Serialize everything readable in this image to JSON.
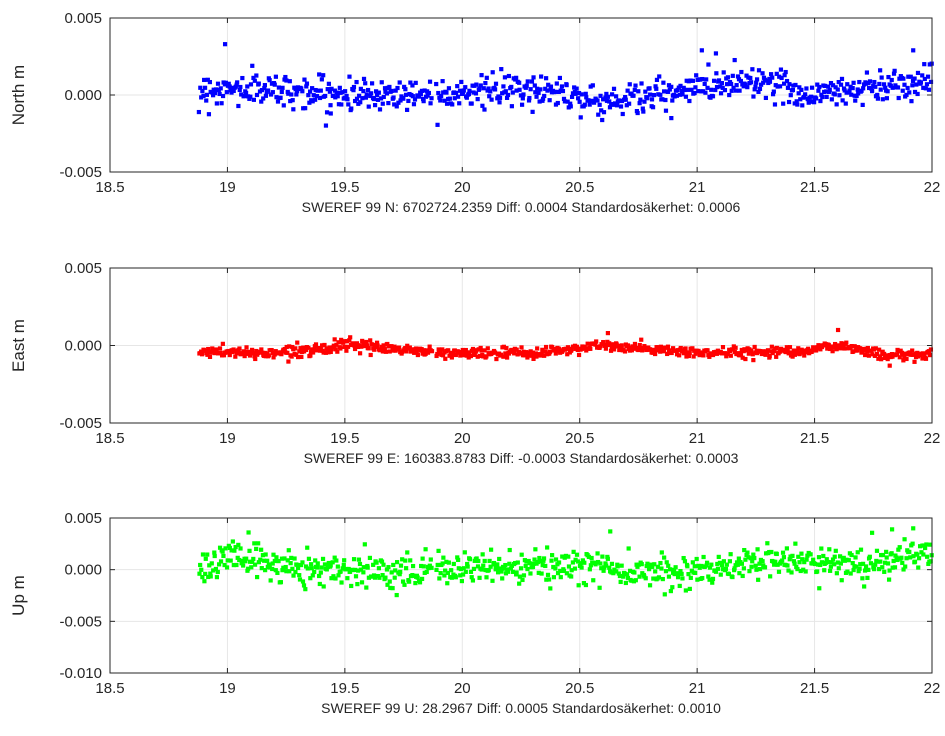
{
  "chart_data": [
    {
      "type": "scatter",
      "ylabel": "North m",
      "xlabel": "SWEREF 99 N: 6702724.2359 Diff: 0.0004 Standardosäkerhet: 0.0006",
      "xlim": [
        18.5,
        22
      ],
      "ylim": [
        -0.005,
        0.005
      ],
      "xticks": [
        18.5,
        19,
        19.5,
        20,
        20.5,
        21,
        21.5,
        22
      ],
      "xtick_labels": [
        "18.5",
        "19",
        "19.5",
        "20",
        "20.5",
        "21",
        "21.5",
        "22"
      ],
      "yticks": [
        -0.005,
        0.0,
        0.005
      ],
      "ytick_labels": [
        "-0.005",
        "0.000",
        "0.005"
      ],
      "grid": true,
      "color": "#0000ff",
      "series": [
        {
          "segments": [
            {
              "x_start": 18.88,
              "x_end": 19.87,
              "base": [
                [
                  0.0,
                  0.0003
                ],
                [
                  0.3,
                  0.0004
                ],
                [
                  0.6,
                  0.0
                ],
                [
                  1.0,
                  0.0001
                ]
              ],
              "noise": 0.0006
            },
            {
              "x_start": 19.89,
              "x_end": 22.0,
              "base": [
                [
                  0.0,
                  0.0002
                ],
                [
                  0.25,
                  0.0003
                ],
                [
                  0.32,
                  -0.0005
                ],
                [
                  0.5,
                  0.0002
                ],
                [
                  0.55,
                  0.0007
                ],
                [
                  0.65,
                  0.001
                ],
                [
                  0.75,
                  0.0
                ],
                [
                  0.95,
                  0.0008
                ],
                [
                  1.0,
                  0.001
                ]
              ],
              "noise": 0.0006
            }
          ],
          "outliers": [
            {
              "x": 18.99,
              "y": 0.0033
            },
            {
              "x": 21.02,
              "y": 0.0029
            },
            {
              "x": 21.08,
              "y": 0.0027
            },
            {
              "x": 21.92,
              "y": 0.0029
            },
            {
              "x": 20.89,
              "y": -0.0015
            },
            {
              "x": 19.44,
              "y": -0.0012
            }
          ]
        }
      ]
    },
    {
      "type": "scatter",
      "ylabel": "East m",
      "xlabel": "SWEREF 99 E:  160383.8783 Diff: -0.0003 Standardosäkerhet: 0.0003",
      "xlim": [
        18.5,
        22
      ],
      "ylim": [
        -0.005,
        0.005
      ],
      "xticks": [
        18.5,
        19,
        19.5,
        20,
        20.5,
        21,
        21.5,
        22
      ],
      "xtick_labels": [
        "18.5",
        "19",
        "19.5",
        "20",
        "20.5",
        "21",
        "21.5",
        "22"
      ],
      "yticks": [
        -0.005,
        0.0,
        0.005
      ],
      "ytick_labels": [
        "-0.005",
        "0.000",
        "0.005"
      ],
      "grid": true,
      "color": "#ff0000",
      "series": [
        {
          "segments": [
            {
              "x_start": 18.88,
              "x_end": 19.87,
              "base": [
                [
                  0.0,
                  -0.0004
                ],
                [
                  0.3,
                  -0.0005
                ],
                [
                  0.65,
                  0.0
                ],
                [
                  1.0,
                  -0.0004
                ]
              ],
              "noise": 0.0002
            },
            {
              "x_start": 19.89,
              "x_end": 22.0,
              "base": [
                [
                  0.0,
                  -0.0005
                ],
                [
                  0.2,
                  -0.0005
                ],
                [
                  0.33,
                  0.0
                ],
                [
                  0.45,
                  -0.0003
                ],
                [
                  0.55,
                  -0.0005
                ],
                [
                  0.75,
                  -0.0003
                ],
                [
                  0.82,
                  0.0
                ],
                [
                  0.9,
                  -0.0006
                ],
                [
                  1.0,
                  -0.0006
                ]
              ],
              "noise": 0.0002
            }
          ],
          "outliers": [
            {
              "x": 21.6,
              "y": 0.001
            },
            {
              "x": 20.62,
              "y": 0.0008
            },
            {
              "x": 21.82,
              "y": -0.0013
            }
          ]
        }
      ]
    },
    {
      "type": "scatter",
      "ylabel": "Up m",
      "xlabel": "SWEREF 99 U:   28.2967 Diff: 0.0005 Standardosäkerhet: 0.0010",
      "xlim": [
        18.5,
        22
      ],
      "ylim": [
        -0.01,
        0.005
      ],
      "xticks": [
        18.5,
        19,
        19.5,
        20,
        20.5,
        21,
        21.5,
        22
      ],
      "xtick_labels": [
        "18.5",
        "19",
        "19.5",
        "20",
        "20.5",
        "21",
        "21.5",
        "22"
      ],
      "yticks": [
        -0.01,
        -0.005,
        0.0,
        0.005
      ],
      "ytick_labels": [
        "-0.010",
        "-0.005",
        "0.000",
        "0.005"
      ],
      "grid": true,
      "color": "#00ff00",
      "series": [
        {
          "segments": [
            {
              "x_start": 18.88,
              "x_end": 19.87,
              "base": [
                [
                  0.0,
                  0.0
                ],
                [
                  0.15,
                  0.0015
                ],
                [
                  0.3,
                  0.0005
                ],
                [
                  0.6,
                  0.0
                ],
                [
                  1.0,
                  0.0
                ]
              ],
              "noise": 0.0009
            },
            {
              "x_start": 19.89,
              "x_end": 22.0,
              "base": [
                [
                  0.0,
                  0.0
                ],
                [
                  0.3,
                  0.0003
                ],
                [
                  0.5,
                  -0.0003
                ],
                [
                  0.6,
                  0.0005
                ],
                [
                  0.75,
                  0.001
                ],
                [
                  0.85,
                  0.0005
                ],
                [
                  1.0,
                  0.0015
                ]
              ],
              "noise": 0.0009
            }
          ],
          "outliers": [
            {
              "x": 19.09,
              "y": 0.0036
            },
            {
              "x": 20.63,
              "y": 0.0037
            },
            {
              "x": 21.92,
              "y": 0.004
            },
            {
              "x": 21.83,
              "y": 0.0039
            },
            {
              "x": 21.52,
              "y": -0.0018
            }
          ]
        }
      ]
    }
  ]
}
